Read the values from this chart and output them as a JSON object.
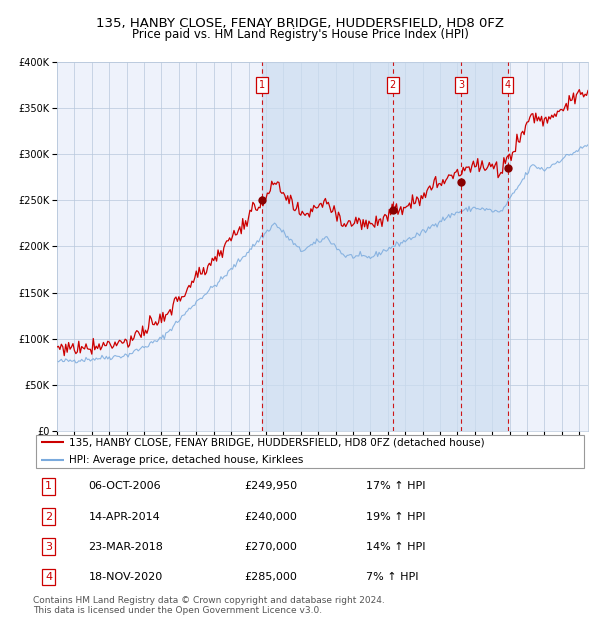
{
  "title_line1": "135, HANBY CLOSE, FENAY BRIDGE, HUDDERSFIELD, HD8 0FZ",
  "title_line2": "Price paid vs. HM Land Registry's House Price Index (HPI)",
  "legend_red": "135, HANBY CLOSE, FENAY BRIDGE, HUDDERSFIELD, HD8 0FZ (detached house)",
  "legend_blue": "HPI: Average price, detached house, Kirklees",
  "footer_line1": "Contains HM Land Registry data © Crown copyright and database right 2024.",
  "footer_line2": "This data is licensed under the Open Government Licence v3.0.",
  "transactions": [
    {
      "num": 1,
      "date": "06-OCT-2006",
      "price": 249950,
      "price_str": "£249,950",
      "pct": "17%",
      "dir": "↑"
    },
    {
      "num": 2,
      "date": "14-APR-2014",
      "price": 240000,
      "price_str": "£240,000",
      "pct": "19%",
      "dir": "↑"
    },
    {
      "num": 3,
      "date": "23-MAR-2018",
      "price": 270000,
      "price_str": "£270,000",
      "pct": "14%",
      "dir": "↑"
    },
    {
      "num": 4,
      "date": "18-NOV-2020",
      "price": 285000,
      "price_str": "£285,000",
      "pct": "7%",
      "dir": "↑"
    }
  ],
  "transaction_dates_decimal": [
    2006.76,
    2014.28,
    2018.22,
    2020.88
  ],
  "transaction_prices": [
    249950,
    240000,
    270000,
    285000
  ],
  "ylim": [
    0,
    400000
  ],
  "yticks": [
    0,
    50000,
    100000,
    150000,
    200000,
    250000,
    300000,
    350000,
    400000
  ],
  "xlim_start": 1995.0,
  "xlim_end": 2025.5,
  "background_color": "#ffffff",
  "plot_bg_color": "#eef2fb",
  "shaded_region_color": "#ccddf0",
  "grid_color": "#b8c8dc",
  "red_line_color": "#cc0000",
  "blue_line_color": "#7aaadd",
  "dashed_line_color": "#cc0000",
  "marker_color": "#880000",
  "title_fontsize": 9.5,
  "subtitle_fontsize": 8.5,
  "tick_fontsize": 7,
  "legend_fontsize": 7.5,
  "table_fontsize": 8,
  "footer_fontsize": 6.5,
  "blue_wp_x": [
    1995.0,
    1997.0,
    1999.0,
    2001.0,
    2003.0,
    2004.5,
    2007.5,
    2009.0,
    2010.5,
    2011.5,
    2013.0,
    2014.3,
    2016.0,
    2017.0,
    2018.0,
    2019.0,
    2020.5,
    2021.5,
    2022.3,
    2023.0,
    2024.0,
    2025.5
  ],
  "blue_wp_y": [
    75000,
    78000,
    82000,
    100000,
    140000,
    165000,
    225000,
    195000,
    210000,
    190000,
    188000,
    200000,
    215000,
    228000,
    237000,
    242000,
    237000,
    265000,
    288000,
    283000,
    295000,
    310000
  ]
}
